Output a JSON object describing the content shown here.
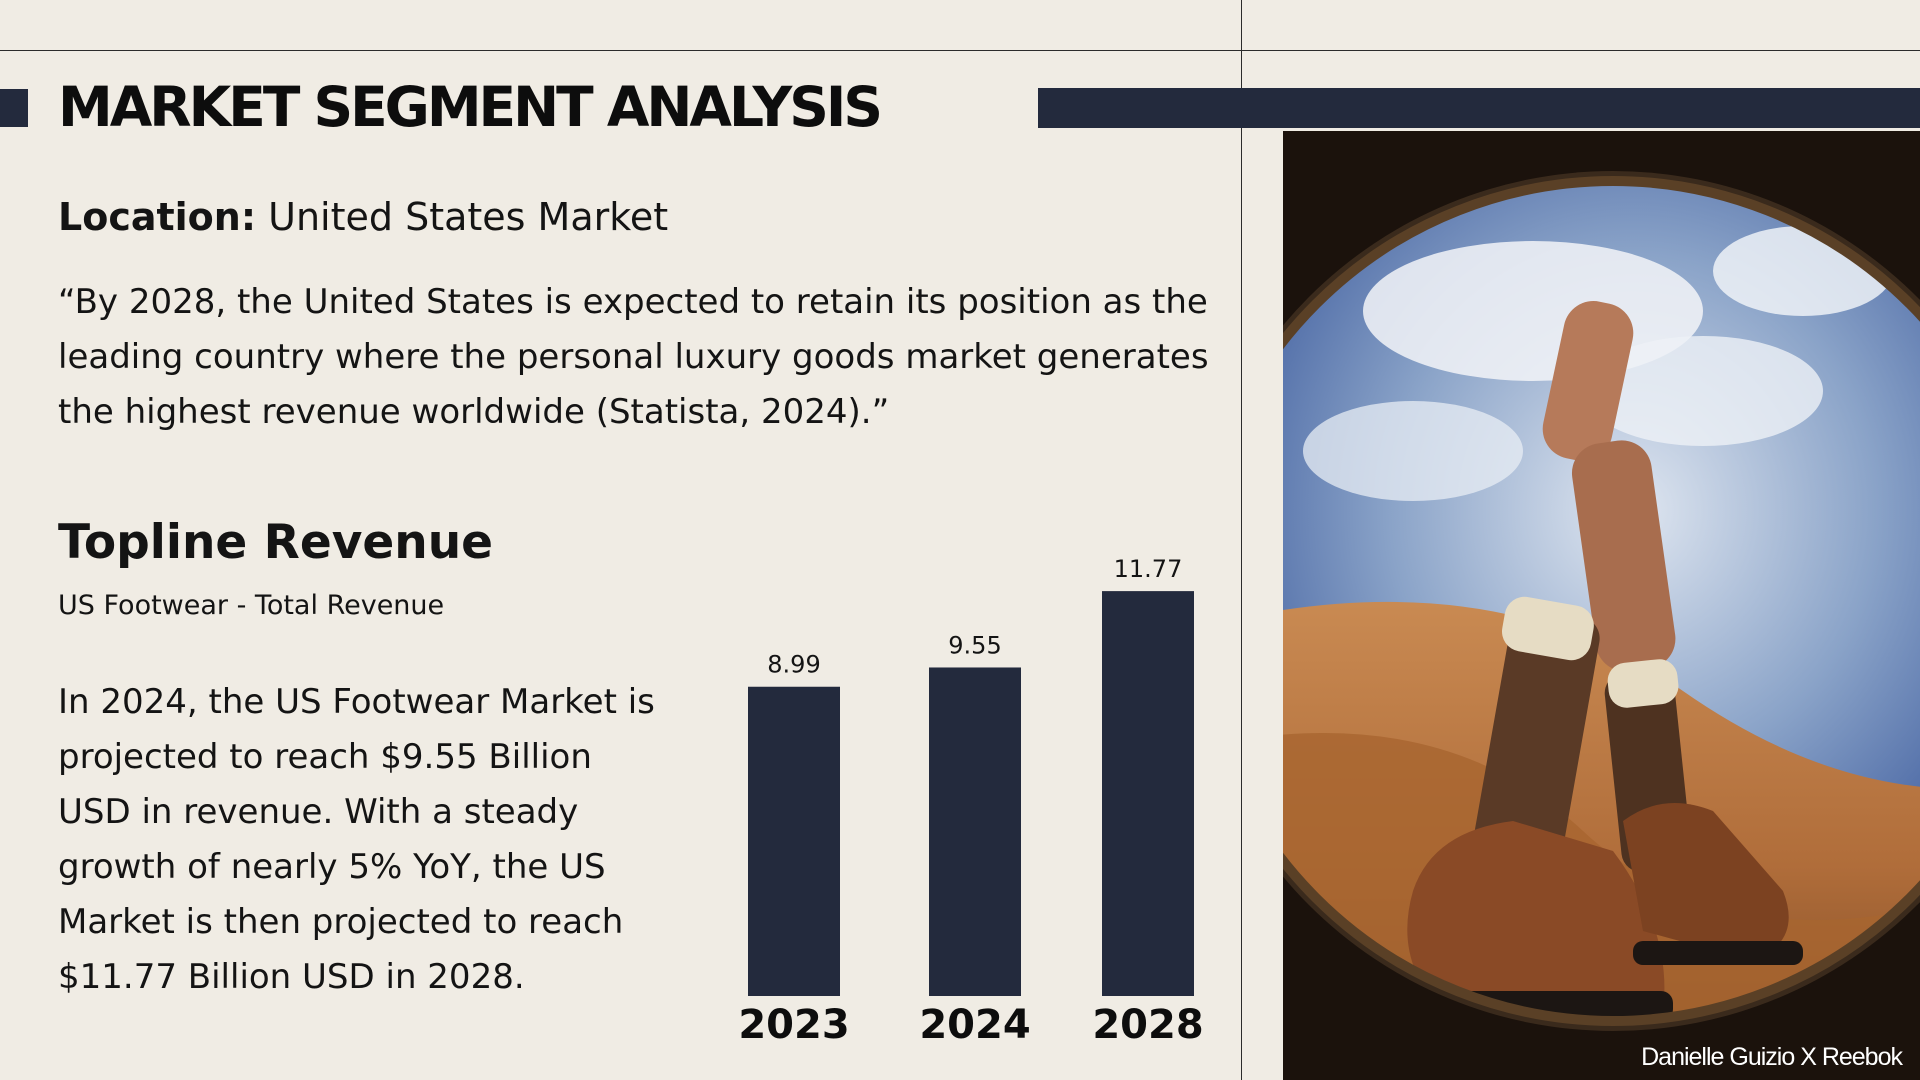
{
  "slide": {
    "title": "MARKET SEGMENT ANALYSIS",
    "location_label": "Location:",
    "location_value": "United States Market",
    "quote": "“By 2028, the United States is expected to retain its position as the leading country where the personal luxury goods market generates the highest revenue worldwide (Statista, 2024).”",
    "section_title": "Topline Revenue",
    "section_subtitle": "US Footwear - Total Revenue",
    "body": "In 2024, the US Footwear Market is projected to reach $9.55 Billion USD in revenue. With a steady growth of nearly 5% YoY, the US Market is then projected to reach $11.77 Billion USD in 2028.",
    "photo_credit": "Danielle Guizio X Reebok"
  },
  "colors": {
    "background": "#f0ece4",
    "accent": "#232a3d",
    "text": "#141414"
  },
  "chart_data": {
    "type": "bar",
    "categories": [
      "2023",
      "2024",
      "2028"
    ],
    "values": [
      8.99,
      9.55,
      11.77
    ],
    "value_labels": [
      "8.99",
      "9.55",
      "11.77"
    ],
    "title": "",
    "xlabel": "",
    "ylabel": "",
    "ylim": [
      0,
      12.5
    ],
    "grid": false,
    "legend": "none",
    "bar_color": "#232a3d"
  }
}
